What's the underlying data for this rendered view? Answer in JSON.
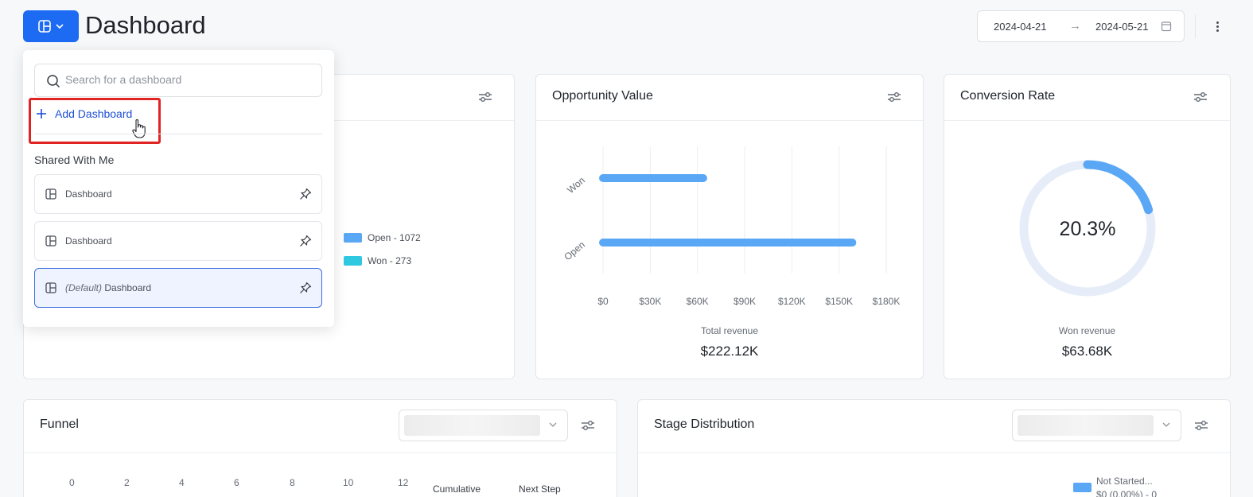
{
  "header": {
    "title": "Dashboard",
    "date_start": "2024-04-21",
    "date_arrow": "→",
    "date_end": "2024-05-21"
  },
  "dropdown": {
    "search_placeholder": "Search for a dashboard",
    "add_label": "Add Dashboard",
    "shared_label": "Shared With Me",
    "items": [
      {
        "prefix": "",
        "label": "Dashboard"
      },
      {
        "prefix": "",
        "label": "Dashboard"
      },
      {
        "prefix": "(Default)",
        "label": " Dashboard"
      }
    ]
  },
  "cards": {
    "card1": {
      "legend": [
        {
          "label": "Open - 1072",
          "color": "#5aa7f5"
        },
        {
          "label": "Won - 273",
          "color": "#2ec9e0"
        }
      ]
    },
    "opportunity": {
      "title": "Opportunity Value",
      "total_label": "Total revenue",
      "total_value": "$222.12K"
    },
    "conversion": {
      "title": "Conversion Rate",
      "value": "20.3%",
      "won_label": "Won revenue",
      "won_value": "$63.68K"
    },
    "funnel": {
      "title": "Funnel",
      "axis": [
        "0",
        "2",
        "4",
        "6",
        "8",
        "10",
        "12"
      ],
      "col_cumulative": "Cumulative",
      "col_next": "Next Step"
    },
    "stage": {
      "title": "Stage Distribution",
      "legend_label": "Not Started...",
      "legend_sub": "$0 (0.00%) - 0"
    }
  },
  "chart_data": [
    {
      "type": "bar",
      "orientation": "horizontal",
      "categories": [
        "Won",
        "Open"
      ],
      "values": [
        63680,
        158440
      ],
      "xlim": [
        0,
        180000
      ],
      "xticks": [
        "$0",
        "$30K",
        "$60K",
        "$90K",
        "$120K",
        "$150K",
        "$180K"
      ],
      "color": "#5aa7f5"
    },
    {
      "type": "pie",
      "variant": "ring",
      "values": [
        20.3,
        79.7
      ],
      "label": "20.3%",
      "colors": [
        "#5aa7f5",
        "#e6edf8"
      ]
    }
  ]
}
